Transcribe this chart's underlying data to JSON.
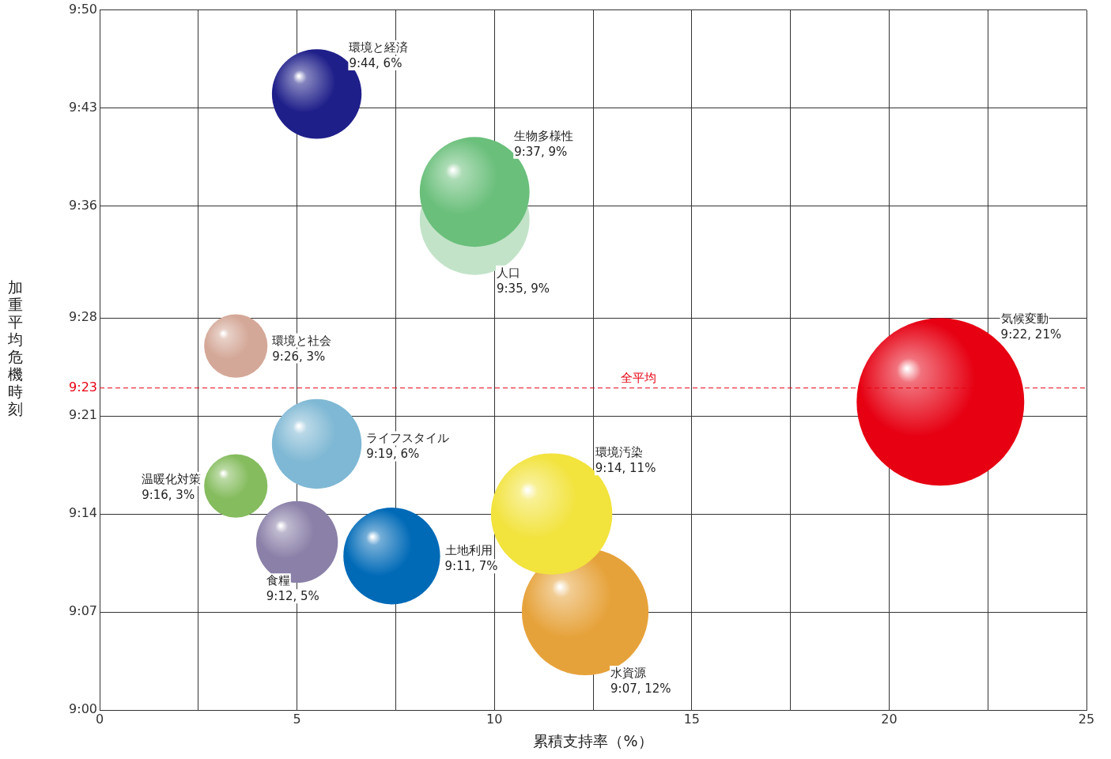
{
  "chart_data": {
    "type": "bubble",
    "xlabel": "累積支持率（%）",
    "ylabel": "加重平均危機時刻",
    "xlim": [
      0,
      25
    ],
    "xticks": [
      0,
      {
        "value": 2.5,
        "label": null
      },
      5,
      {
        "value": 7.5,
        "label": null
      },
      10,
      {
        "value": 12.5,
        "label": null
      },
      15,
      {
        "value": 17.5,
        "label": null
      },
      20,
      {
        "value": 22.5,
        "label": null
      },
      25
    ],
    "ylim": [
      9,
      9.8333
    ],
    "yticks": [
      {
        "value": 9,
        "label": "9:00"
      },
      {
        "value": 9.1167,
        "label": "9:07"
      },
      {
        "value": 9.2333,
        "label": "9:14"
      },
      {
        "value": 9.35,
        "label": "9:21"
      },
      {
        "value": 9.3833,
        "label": "9:23"
      },
      {
        "value": 9.4667,
        "label": "9:28"
      },
      {
        "value": 9.6,
        "label": "9:36"
      },
      {
        "value": 9.7167,
        "label": "9:43"
      },
      {
        "value": 9.8333,
        "label": "9:50"
      }
    ],
    "grid": true,
    "legend": false,
    "ref_lines": [
      {
        "axis": "y",
        "value": 9.3833,
        "label": "全平均",
        "color": "#e60012",
        "line_style": "dashed"
      }
    ],
    "series": [
      {
        "name": "環境と経済",
        "color": "#1f1f8a",
        "x": [
          5.5
        ],
        "values": [
          9.7333
        ],
        "sizes": [
          0.286
        ],
        "value_labels": [
          "9:44, 6%"
        ]
      },
      {
        "name": "生物多様性",
        "color": "#6abf7b",
        "x": [
          9.5
        ],
        "values": [
          9.6167
        ],
        "sizes": [
          0.429
        ],
        "value_labels": [
          "9:37, 9%"
        ]
      },
      {
        "name": "人口",
        "color": "#c2e3c8",
        "x": [
          9.5
        ],
        "values": [
          9.5833
        ],
        "sizes": [
          0.429
        ],
        "value_labels": [
          "9:35, 9%"
        ]
      },
      {
        "name": "環境と社会",
        "color": "#d4a898",
        "x": [
          3.45
        ],
        "values": [
          9.4333
        ],
        "sizes": [
          0.143
        ],
        "value_labels": [
          "9:26, 3%"
        ]
      },
      {
        "name": "気候変動",
        "color": "#e60012",
        "x": [
          21.3
        ],
        "values": [
          9.3667
        ],
        "sizes": [
          1
        ],
        "value_labels": [
          "9:22, 21%"
        ]
      },
      {
        "name": "ライフスタイル",
        "color": "#7fb8d4",
        "x": [
          5.5
        ],
        "values": [
          9.3167
        ],
        "sizes": [
          0.286
        ],
        "value_labels": [
          "9:19, 6%"
        ]
      },
      {
        "name": "温暖化対策",
        "color": "#85bc5e",
        "x": [
          3.45
        ],
        "values": [
          9.2667
        ],
        "sizes": [
          0.143
        ],
        "value_labels": [
          "9:16, 3%"
        ]
      },
      {
        "name": "食糧",
        "color": "#8a80a8",
        "x": [
          5.0
        ],
        "values": [
          9.2
        ],
        "sizes": [
          0.238
        ],
        "value_labels": [
          "9:12, 5%"
        ]
      },
      {
        "name": "土地利用",
        "color": "#006ab7",
        "x": [
          7.4
        ],
        "values": [
          9.1833
        ],
        "sizes": [
          0.333
        ],
        "value_labels": [
          "9:11, 7%"
        ]
      },
      {
        "name": "環境汚染",
        "color": "#f2e33d",
        "x": [
          11.45
        ],
        "values": [
          9.2333
        ],
        "sizes": [
          0.524
        ],
        "value_labels": [
          "9:14, 11%"
        ]
      },
      {
        "name": "水資源",
        "color": "#e6a23a",
        "x": [
          12.3
        ],
        "values": [
          9.1167
        ],
        "sizes": [
          0.571
        ],
        "value_labels": [
          "9:07, 12%"
        ]
      }
    ]
  }
}
